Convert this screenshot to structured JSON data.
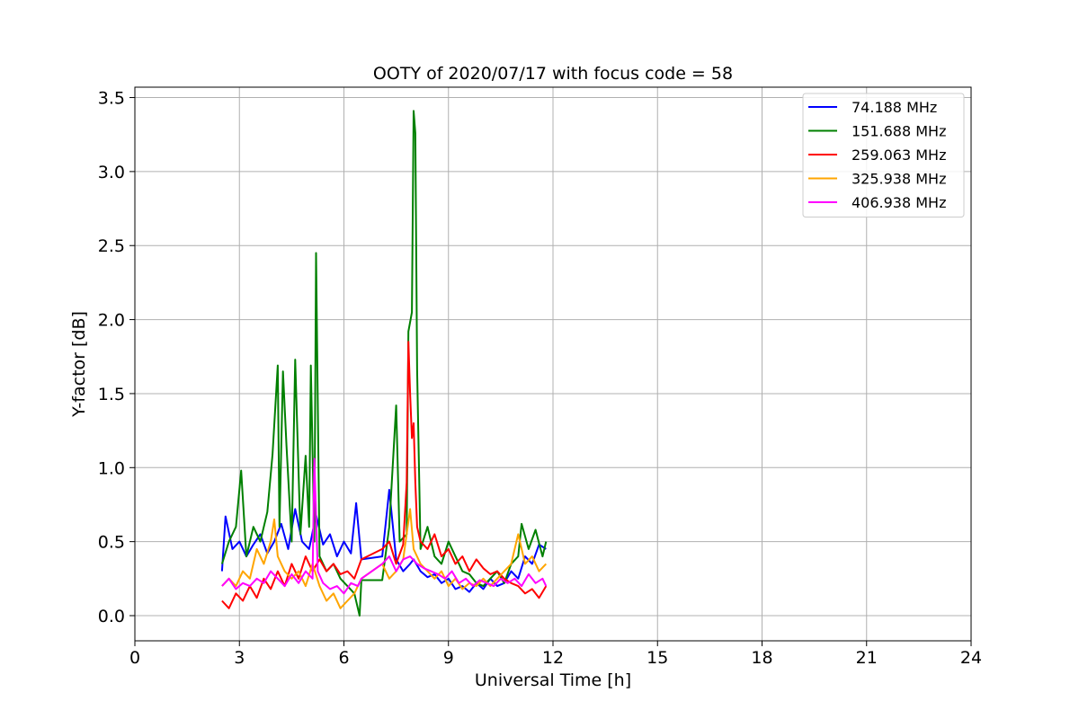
{
  "chart_data": {
    "type": "line",
    "title": "OOTY of 2020/07/17 with focus code = 58",
    "xlabel": "Universal Time [h]",
    "ylabel": "Y-factor [dB]",
    "xlim": [
      0,
      24
    ],
    "ylim": [
      -0.17,
      3.57
    ],
    "xticks": [
      0,
      3,
      6,
      9,
      12,
      15,
      18,
      21,
      24
    ],
    "yticks": [
      0.0,
      0.5,
      1.0,
      1.5,
      2.0,
      2.5,
      3.0,
      3.5
    ],
    "xtick_labels": [
      "0",
      "3",
      "6",
      "9",
      "12",
      "15",
      "18",
      "21",
      "24"
    ],
    "ytick_labels": [
      "0.0",
      "0.5",
      "1.0",
      "1.5",
      "2.0",
      "2.5",
      "3.0",
      "3.5"
    ],
    "grid": true,
    "legend_position": "top-right",
    "series": [
      {
        "name": " 74.188 MHz",
        "color": "#0000ff",
        "x": [
          2.5,
          2.6,
          2.8,
          3.0,
          3.2,
          3.4,
          3.6,
          3.8,
          4.0,
          4.2,
          4.4,
          4.6,
          4.8,
          5.0,
          5.2,
          5.4,
          5.6,
          5.8,
          6.0,
          6.2,
          6.35,
          6.5,
          7.1,
          7.3,
          7.5,
          7.7,
          7.9,
          8.0,
          8.2,
          8.4,
          8.6,
          8.8,
          9.0,
          9.2,
          9.4,
          9.6,
          9.8,
          10.0,
          10.2,
          10.4,
          10.6,
          10.8,
          11.0,
          11.2,
          11.4,
          11.6,
          11.8
        ],
        "y": [
          0.3,
          0.67,
          0.45,
          0.5,
          0.4,
          0.48,
          0.55,
          0.42,
          0.5,
          0.62,
          0.45,
          0.72,
          0.5,
          0.45,
          0.68,
          0.48,
          0.55,
          0.4,
          0.5,
          0.42,
          0.76,
          0.38,
          0.4,
          0.85,
          0.38,
          0.3,
          0.35,
          0.38,
          0.3,
          0.26,
          0.28,
          0.22,
          0.25,
          0.18,
          0.2,
          0.16,
          0.22,
          0.18,
          0.25,
          0.2,
          0.22,
          0.3,
          0.25,
          0.4,
          0.35,
          0.48,
          0.45
        ]
      },
      {
        "name": "151.688 MHz",
        "color": "#008000",
        "x": [
          2.5,
          2.7,
          2.9,
          3.05,
          3.2,
          3.4,
          3.6,
          3.8,
          3.95,
          4.1,
          4.15,
          4.25,
          4.35,
          4.5,
          4.6,
          4.75,
          4.9,
          5.0,
          5.05,
          5.15,
          5.2,
          5.3,
          5.5,
          5.7,
          5.9,
          6.1,
          6.3,
          6.45,
          6.5,
          7.1,
          7.3,
          7.5,
          7.6,
          7.8,
          7.85,
          7.95,
          8.0,
          8.05,
          8.1,
          8.2,
          8.4,
          8.6,
          8.8,
          9.0,
          9.2,
          9.4,
          9.6,
          9.8,
          10.0,
          10.2,
          10.4,
          10.6,
          10.8,
          11.0,
          11.1,
          11.3,
          11.5,
          11.7,
          11.8
        ],
        "y": [
          0.35,
          0.5,
          0.6,
          0.98,
          0.4,
          0.6,
          0.5,
          0.7,
          1.09,
          1.69,
          0.6,
          1.65,
          1.15,
          0.5,
          1.73,
          0.55,
          1.08,
          0.6,
          1.69,
          0.5,
          2.45,
          0.4,
          0.3,
          0.35,
          0.25,
          0.2,
          0.15,
          0.0,
          0.24,
          0.24,
          0.6,
          1.42,
          0.5,
          0.55,
          1.92,
          2.05,
          3.41,
          3.26,
          1.66,
          0.45,
          0.6,
          0.4,
          0.35,
          0.5,
          0.4,
          0.3,
          0.28,
          0.22,
          0.2,
          0.25,
          0.3,
          0.22,
          0.35,
          0.4,
          0.62,
          0.45,
          0.58,
          0.4,
          0.5
        ]
      },
      {
        "name": "259.063 MHz",
        "color": "#ff0000",
        "x": [
          2.5,
          2.7,
          2.9,
          3.1,
          3.3,
          3.5,
          3.7,
          3.9,
          4.1,
          4.3,
          4.5,
          4.7,
          4.9,
          5.1,
          5.3,
          5.5,
          5.7,
          5.9,
          6.1,
          6.3,
          6.5,
          7.1,
          7.3,
          7.5,
          7.7,
          7.8,
          7.85,
          7.9,
          7.95,
          8.0,
          8.05,
          8.1,
          8.2,
          8.4,
          8.6,
          8.8,
          9.0,
          9.2,
          9.4,
          9.6,
          9.8,
          10.0,
          10.2,
          10.4,
          10.6,
          10.8,
          11.0,
          11.2,
          11.4,
          11.6,
          11.8
        ],
        "y": [
          0.1,
          0.05,
          0.15,
          0.1,
          0.2,
          0.12,
          0.25,
          0.18,
          0.3,
          0.2,
          0.35,
          0.25,
          0.4,
          0.3,
          0.38,
          0.3,
          0.35,
          0.28,
          0.3,
          0.25,
          0.38,
          0.45,
          0.5,
          0.35,
          0.48,
          0.9,
          1.85,
          1.5,
          1.2,
          1.3,
          0.9,
          0.6,
          0.5,
          0.45,
          0.55,
          0.4,
          0.45,
          0.35,
          0.4,
          0.3,
          0.38,
          0.32,
          0.28,
          0.3,
          0.25,
          0.22,
          0.2,
          0.15,
          0.18,
          0.12,
          0.2
        ]
      },
      {
        "name": "325.938 MHz",
        "color": "#ffa500",
        "x": [
          2.5,
          2.7,
          2.9,
          3.1,
          3.3,
          3.5,
          3.7,
          3.9,
          4.0,
          4.1,
          4.3,
          4.5,
          4.7,
          4.9,
          5.1,
          5.3,
          5.5,
          5.7,
          5.9,
          6.1,
          6.3,
          6.5,
          7.1,
          7.3,
          7.5,
          7.7,
          7.9,
          8.0,
          8.2,
          8.4,
          8.6,
          8.8,
          9.0,
          9.2,
          9.4,
          9.6,
          9.8,
          10.0,
          10.2,
          10.4,
          10.6,
          10.8,
          11.0,
          11.2,
          11.4,
          11.6,
          11.8
        ],
        "y": [
          0.2,
          0.25,
          0.2,
          0.3,
          0.25,
          0.45,
          0.35,
          0.5,
          0.65,
          0.4,
          0.3,
          0.25,
          0.3,
          0.2,
          0.35,
          0.2,
          0.1,
          0.15,
          0.05,
          0.1,
          0.15,
          0.25,
          0.35,
          0.25,
          0.3,
          0.38,
          0.72,
          0.45,
          0.35,
          0.3,
          0.25,
          0.3,
          0.2,
          0.25,
          0.18,
          0.22,
          0.2,
          0.25,
          0.2,
          0.25,
          0.3,
          0.35,
          0.55,
          0.35,
          0.4,
          0.3,
          0.35
        ]
      },
      {
        "name": "406.938 MHz",
        "color": "#ff00ff",
        "x": [
          2.5,
          2.7,
          2.9,
          3.1,
          3.3,
          3.5,
          3.7,
          3.9,
          4.1,
          4.3,
          4.5,
          4.7,
          4.9,
          5.1,
          5.15,
          5.25,
          5.4,
          5.6,
          5.8,
          6.0,
          6.2,
          6.4,
          6.5,
          7.1,
          7.3,
          7.5,
          7.7,
          7.9,
          8.1,
          8.3,
          8.5,
          8.7,
          8.9,
          9.1,
          9.3,
          9.5,
          9.7,
          9.9,
          10.1,
          10.3,
          10.5,
          10.7,
          10.9,
          11.1,
          11.3,
          11.5,
          11.7,
          11.8
        ],
        "y": [
          0.2,
          0.25,
          0.18,
          0.22,
          0.2,
          0.25,
          0.22,
          0.3,
          0.25,
          0.2,
          0.28,
          0.22,
          0.3,
          0.25,
          1.06,
          0.3,
          0.22,
          0.18,
          0.2,
          0.15,
          0.22,
          0.2,
          0.25,
          0.35,
          0.4,
          0.3,
          0.38,
          0.4,
          0.35,
          0.32,
          0.3,
          0.28,
          0.25,
          0.3,
          0.22,
          0.25,
          0.2,
          0.24,
          0.22,
          0.2,
          0.25,
          0.22,
          0.25,
          0.2,
          0.28,
          0.22,
          0.25,
          0.2
        ]
      }
    ]
  }
}
